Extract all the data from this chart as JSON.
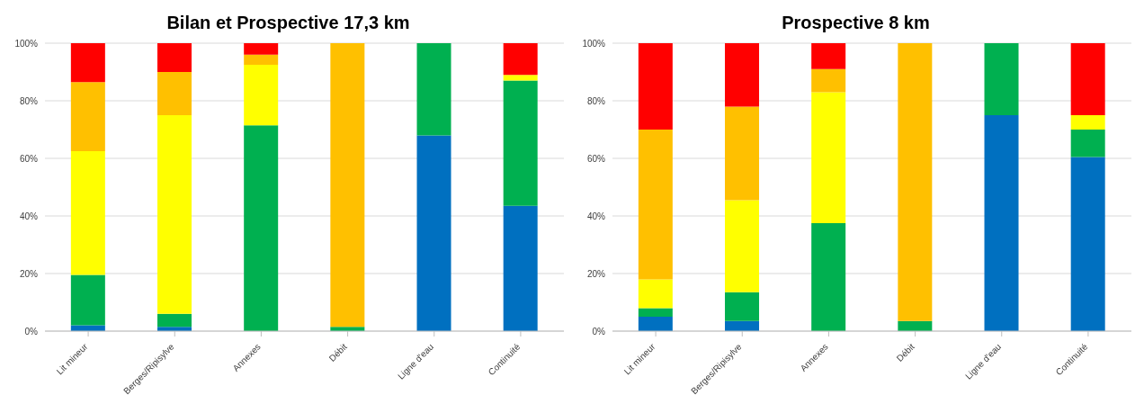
{
  "chart_data": [
    {
      "type": "bar",
      "title": "Bilan et Prospective 17,3 km",
      "stacked": true,
      "categories": [
        "Lit mineur",
        "Berges/Ripisylve",
        "Annexes",
        "Débit",
        "Ligne d'eau",
        "Continuité"
      ],
      "series": [
        {
          "color": "#0070c0",
          "values": [
            2,
            1.5,
            null,
            null,
            68,
            43.5
          ]
        },
        {
          "color": "#00b050",
          "values": [
            17.5,
            4.5,
            71.5,
            1.5,
            32,
            43.5
          ]
        },
        {
          "color": "#ffff00",
          "values": [
            43,
            69,
            21,
            null,
            null,
            2
          ]
        },
        {
          "color": "#ffc000",
          "values": [
            24,
            15,
            3.5,
            98.5,
            null,
            null
          ]
        },
        {
          "color": "#ff0000",
          "values": [
            13.5,
            10,
            4,
            null,
            null,
            11
          ]
        }
      ],
      "ylim": [
        0,
        100
      ],
      "yticks": [
        {
          "value": 0,
          "label": "0%"
        },
        {
          "value": 20,
          "label": "20%"
        },
        {
          "value": 40,
          "label": "40%"
        },
        {
          "value": 60,
          "label": "60%"
        },
        {
          "value": 80,
          "label": "80%"
        },
        {
          "value": 100,
          "label": "100%"
        }
      ],
      "grid": "y",
      "legend": false
    },
    {
      "type": "bar",
      "title": "Prospective 8 km",
      "stacked": true,
      "categories": [
        "Lit mineur",
        "Berges/Ripisylve",
        "Annexes",
        "Débit",
        "Ligne d'eau",
        "Continuité"
      ],
      "series": [
        {
          "color": "#0070c0",
          "values": [
            5,
            3.5,
            null,
            null,
            75,
            60.5
          ]
        },
        {
          "color": "#00b050",
          "values": [
            3,
            10,
            37.5,
            3.5,
            25,
            9.5
          ]
        },
        {
          "color": "#ffff00",
          "values": [
            10,
            32,
            45.5,
            null,
            null,
            5
          ]
        },
        {
          "color": "#ffc000",
          "values": [
            52,
            32.5,
            8,
            96.5,
            null,
            null
          ]
        },
        {
          "color": "#ff0000",
          "values": [
            30,
            22,
            9,
            null,
            null,
            25
          ]
        }
      ],
      "ylim": [
        0,
        100
      ],
      "yticks": [
        {
          "value": 0,
          "label": "0%"
        },
        {
          "value": 20,
          "label": "20%"
        },
        {
          "value": 40,
          "label": "40%"
        },
        {
          "value": 60,
          "label": "60%"
        },
        {
          "value": 80,
          "label": "80%"
        },
        {
          "value": 100,
          "label": "100%"
        }
      ],
      "grid": "y",
      "legend": false
    }
  ]
}
